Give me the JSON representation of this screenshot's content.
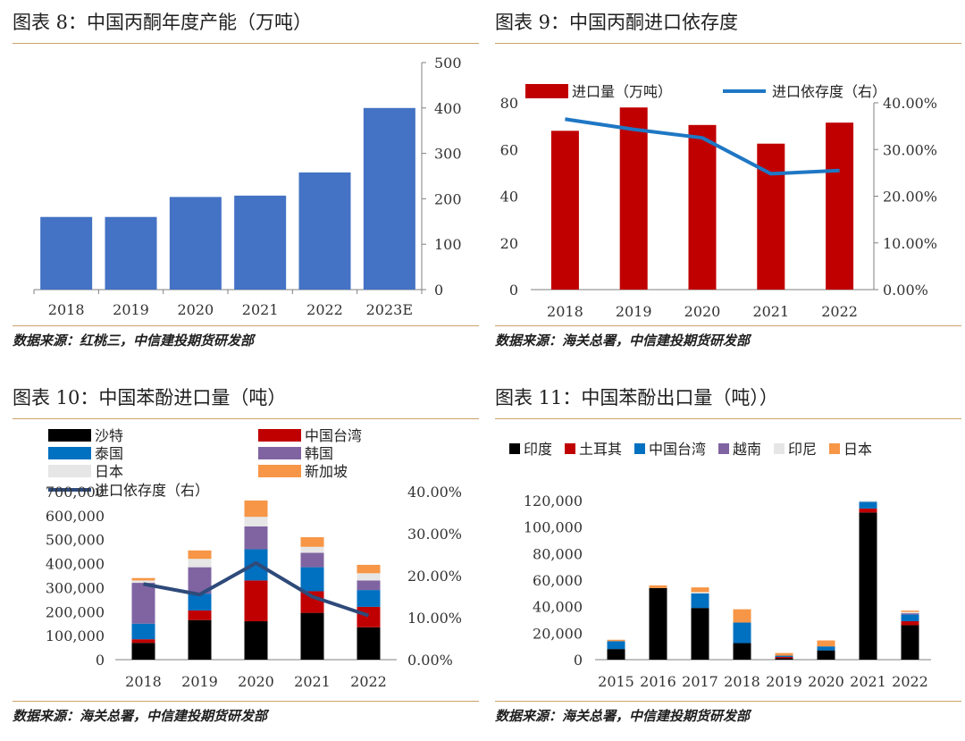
{
  "panels": [
    {
      "title": "图表 8：中国丙酮年度产能（万吨）",
      "source": "数据来源：红桃三，中信建投期货研发部"
    },
    {
      "title": "图表 9：中国丙酮进口依存度",
      "source": "数据来源：海关总署，中信建投期货研发部"
    },
    {
      "title": "图表 10：中国苯酚进口量（吨）",
      "source": "数据来源：海关总署，中信建投期货研发部"
    },
    {
      "title": "图表 11：中国苯酚出口量（吨））",
      "source": "数据来源：海关总署，中信建投期货研发部"
    }
  ],
  "colors": {
    "blue_bar": "#4472c4",
    "red_bar": "#c00000",
    "line_blue": "#1f77c4",
    "line_navy": "#2e4a7a",
    "black": "#000000",
    "red": "#c00000",
    "blue": "#0070c0",
    "purple": "#8064a2",
    "lightgray": "#e6e6e6",
    "orange": "#f79646",
    "axis": "#808080",
    "rule": "#c9a26a"
  },
  "chart_data": [
    {
      "type": "bar",
      "categories": [
        "2018",
        "2019",
        "2020",
        "2021",
        "2022",
        "2023E"
      ],
      "values": [
        160,
        160,
        204,
        207,
        258,
        400
      ],
      "y_axis_side": "right",
      "ylim": [
        0,
        500
      ],
      "yticks": [
        "0",
        "100",
        "200",
        "300",
        "400",
        "500"
      ],
      "grid": false,
      "legend": "none"
    },
    {
      "type": "bar+line",
      "categories": [
        "2018",
        "2019",
        "2020",
        "2021",
        "2022"
      ],
      "series": [
        {
          "name": "进口量（万吨）",
          "type": "bar",
          "axis": "left",
          "values": [
            68,
            78,
            70.5,
            62.5,
            71.5
          ]
        },
        {
          "name": "进口依存度（右）",
          "type": "line",
          "axis": "right",
          "values": [
            36.5,
            34.3,
            32.5,
            24.8,
            25.5
          ]
        }
      ],
      "ylim_left": [
        0,
        80
      ],
      "yticks_left": [
        "0",
        "20",
        "40",
        "60",
        "80"
      ],
      "ylim_right": [
        0,
        40
      ],
      "yticks_right": [
        "0.00%",
        "10.00%",
        "20.00%",
        "30.00%",
        "40.00%"
      ],
      "legend": "top"
    },
    {
      "type": "stacked_bar+line",
      "categories": [
        "2018",
        "2019",
        "2020",
        "2021",
        "2022"
      ],
      "series": [
        {
          "name": "沙特",
          "type": "bar",
          "color": "black",
          "values": [
            70000,
            165000,
            160000,
            195000,
            135000
          ]
        },
        {
          "name": "中国台湾",
          "type": "bar",
          "color": "red",
          "values": [
            15000,
            40000,
            170000,
            90000,
            85000
          ]
        },
        {
          "name": "泰国",
          "type": "bar",
          "color": "blue",
          "values": [
            65000,
            70000,
            130000,
            100000,
            70000
          ]
        },
        {
          "name": "韩国",
          "type": "bar",
          "color": "purple",
          "values": [
            170000,
            110000,
            95000,
            60000,
            40000
          ]
        },
        {
          "name": "日本",
          "type": "bar",
          "color": "lightgray",
          "values": [
            10000,
            35000,
            40000,
            25000,
            30000
          ]
        },
        {
          "name": "新加坡",
          "type": "bar",
          "color": "orange",
          "values": [
            10000,
            35000,
            68000,
            40000,
            35000
          ]
        },
        {
          "name": "进口依存度（右）",
          "type": "line",
          "axis": "right",
          "values": [
            18.0,
            15.5,
            23.0,
            15.0,
            10.5
          ]
        }
      ],
      "ylim_left": [
        0,
        700000
      ],
      "yticks_left": [
        "0",
        "100,000",
        "200,000",
        "300,000",
        "400,000",
        "500,000",
        "600,000",
        "700,000"
      ],
      "ylim_right": [
        0,
        40
      ],
      "yticks_right": [
        "0.00%",
        "10.00%",
        "20.00%",
        "30.00%",
        "40.00%"
      ],
      "legend": "top"
    },
    {
      "type": "stacked_bar",
      "categories": [
        "2015",
        "2016",
        "2017",
        "2018",
        "2019",
        "2020",
        "2021",
        "2022"
      ],
      "series": [
        {
          "name": "印度",
          "color": "black",
          "values": [
            8000,
            54000,
            39000,
            12500,
            1000,
            7000,
            111000,
            26000
          ]
        },
        {
          "name": "土耳其",
          "color": "red",
          "values": [
            0,
            0,
            0,
            0,
            1000,
            0,
            3000,
            3000
          ]
        },
        {
          "name": "中国台湾",
          "color": "blue",
          "values": [
            6000,
            0,
            11000,
            15500,
            1000,
            3000,
            5000,
            5000
          ]
        },
        {
          "name": "越南",
          "color": "purple",
          "values": [
            0,
            0,
            0,
            0,
            0,
            0,
            0,
            1000
          ]
        },
        {
          "name": "印尼",
          "color": "lightgray",
          "values": [
            0,
            0,
            1000,
            0,
            0,
            0,
            1000,
            1000
          ]
        },
        {
          "name": "日本",
          "color": "orange",
          "values": [
            1000,
            2000,
            3500,
            10000,
            2000,
            4500,
            0,
            1000
          ]
        }
      ],
      "ylim": [
        0,
        120000
      ],
      "yticks": [
        "0",
        "20,000",
        "40,000",
        "60,000",
        "80,000",
        "100,000",
        "120,000"
      ],
      "legend": "top"
    }
  ]
}
